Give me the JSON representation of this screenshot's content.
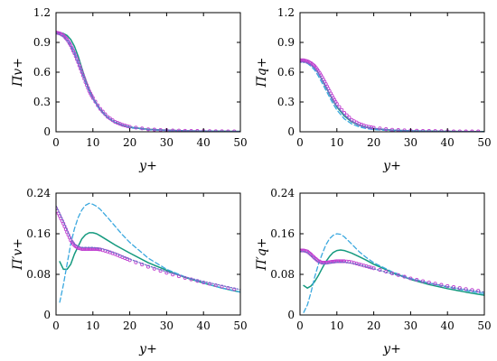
{
  "colors": {
    "green": "#159a7f",
    "cyan_dashed": "#3aa8df",
    "magenta": "#c040d0",
    "blue_dotted": "#6a73c9"
  },
  "chart_data": [
    {
      "type": "line",
      "panel": "top-left",
      "xlabel": "y+",
      "ylabel": "Π̄v+",
      "xlim": [
        0,
        50
      ],
      "ylim": [
        0,
        1.2
      ],
      "xticks": [
        "0",
        "10",
        "20",
        "30",
        "40",
        "50"
      ],
      "yticks": [
        "0",
        "0.3",
        "0.6",
        "0.9",
        "1.2"
      ],
      "series": [
        {
          "style": "solid",
          "color": "#159a7f",
          "x": [
            0,
            1,
            2,
            3,
            4,
            5,
            6,
            7,
            8,
            9,
            10,
            12,
            14,
            16,
            18,
            20,
            25,
            30,
            35,
            40,
            45,
            50
          ],
          "y": [
            1.0,
            1.0,
            0.99,
            0.97,
            0.93,
            0.86,
            0.76,
            0.64,
            0.53,
            0.43,
            0.34,
            0.22,
            0.14,
            0.09,
            0.06,
            0.045,
            0.025,
            0.015,
            0.01,
            0.007,
            0.005,
            0.004
          ]
        },
        {
          "style": "dashed",
          "color": "#3aa8df",
          "x": [
            0,
            1,
            2,
            3,
            4,
            5,
            6,
            7,
            8,
            9,
            10,
            12,
            14,
            16,
            18,
            20,
            25,
            30,
            35,
            40,
            45,
            50
          ],
          "y": [
            1.0,
            0.99,
            0.97,
            0.94,
            0.88,
            0.8,
            0.7,
            0.6,
            0.5,
            0.41,
            0.33,
            0.21,
            0.14,
            0.09,
            0.06,
            0.04,
            0.02,
            0.012,
            0.008,
            0.005,
            0.004,
            0.003
          ]
        },
        {
          "style": "markers",
          "color": "#c040d0",
          "x": [
            0,
            1,
            2,
            3,
            4,
            5,
            6,
            7,
            8,
            9,
            10,
            12,
            14,
            16,
            18,
            20,
            25,
            30,
            35,
            40,
            45,
            50
          ],
          "y": [
            1.0,
            0.99,
            0.97,
            0.93,
            0.87,
            0.79,
            0.7,
            0.6,
            0.5,
            0.41,
            0.34,
            0.23,
            0.15,
            0.1,
            0.07,
            0.05,
            0.025,
            0.015,
            0.01,
            0.007,
            0.005,
            0.004
          ]
        },
        {
          "style": "dotted",
          "color": "#6a73c9",
          "x": [
            0,
            1,
            2,
            3,
            4,
            5,
            6,
            7,
            8,
            9,
            10,
            12,
            14,
            16,
            18,
            20,
            25,
            30,
            35,
            40,
            45,
            50
          ],
          "y": [
            0.99,
            0.98,
            0.96,
            0.92,
            0.86,
            0.78,
            0.69,
            0.59,
            0.5,
            0.41,
            0.34,
            0.23,
            0.15,
            0.1,
            0.07,
            0.05,
            0.025,
            0.015,
            0.01,
            0.007,
            0.005,
            0.004
          ]
        }
      ]
    },
    {
      "type": "line",
      "panel": "top-right",
      "xlabel": "y+",
      "ylabel": "Π̄q+",
      "xlim": [
        0,
        50
      ],
      "ylim": [
        0,
        1.2
      ],
      "xticks": [
        "0",
        "10",
        "20",
        "30",
        "40",
        "50"
      ],
      "yticks": [
        "0",
        "0.3",
        "0.6",
        "0.9",
        "1.2"
      ],
      "series": [
        {
          "style": "solid",
          "color": "#159a7f",
          "x": [
            0,
            1,
            2,
            3,
            4,
            5,
            6,
            7,
            8,
            9,
            10,
            12,
            14,
            16,
            18,
            20,
            25,
            30,
            35,
            40,
            45,
            50
          ],
          "y": [
            0.71,
            0.71,
            0.7,
            0.68,
            0.64,
            0.59,
            0.52,
            0.45,
            0.38,
            0.31,
            0.25,
            0.16,
            0.1,
            0.065,
            0.045,
            0.03,
            0.015,
            0.009,
            0.006,
            0.004,
            0.003,
            0.002
          ]
        },
        {
          "style": "dashed",
          "color": "#3aa8df",
          "x": [
            0,
            1,
            2,
            3,
            4,
            5,
            6,
            7,
            8,
            9,
            10,
            12,
            14,
            16,
            18,
            20,
            25,
            30,
            35,
            40,
            45,
            50
          ],
          "y": [
            0.71,
            0.7,
            0.69,
            0.66,
            0.62,
            0.56,
            0.49,
            0.42,
            0.35,
            0.28,
            0.22,
            0.13,
            0.08,
            0.05,
            0.033,
            0.022,
            0.01,
            0.006,
            0.004,
            0.003,
            0.002,
            0.002
          ]
        },
        {
          "style": "markers",
          "color": "#c040d0",
          "x": [
            0,
            1,
            2,
            3,
            4,
            5,
            6,
            7,
            8,
            9,
            10,
            12,
            14,
            16,
            18,
            20,
            25,
            30,
            35,
            40,
            45,
            50
          ],
          "y": [
            0.72,
            0.72,
            0.71,
            0.69,
            0.66,
            0.61,
            0.55,
            0.48,
            0.41,
            0.34,
            0.28,
            0.19,
            0.12,
            0.08,
            0.055,
            0.04,
            0.02,
            0.012,
            0.008,
            0.005,
            0.004,
            0.003
          ]
        },
        {
          "style": "dotted",
          "color": "#6a73c9",
          "x": [
            0,
            1,
            2,
            3,
            4,
            5,
            6,
            7,
            8,
            9,
            10,
            12,
            14,
            16,
            18,
            20,
            25,
            30,
            35,
            40,
            45,
            50
          ],
          "y": [
            0.7,
            0.7,
            0.69,
            0.67,
            0.64,
            0.59,
            0.53,
            0.46,
            0.39,
            0.32,
            0.26,
            0.17,
            0.11,
            0.07,
            0.05,
            0.035,
            0.018,
            0.011,
            0.007,
            0.005,
            0.003,
            0.002
          ]
        }
      ]
    },
    {
      "type": "line",
      "panel": "bottom-left",
      "xlabel": "y+",
      "ylabel": "Π′v+",
      "xlim": [
        0,
        50
      ],
      "ylim": [
        0,
        0.24
      ],
      "xticks": [
        "0",
        "10",
        "20",
        "30",
        "40",
        "50"
      ],
      "yticks": [
        "0",
        "0.08",
        "0.16",
        "0.24"
      ],
      "series": [
        {
          "style": "solid",
          "color": "#159a7f",
          "x": [
            1,
            2,
            3,
            4,
            5,
            6,
            7,
            8,
            9,
            10,
            11,
            12,
            14,
            16,
            18,
            20,
            25,
            30,
            35,
            40,
            45,
            50
          ],
          "y": [
            0.105,
            0.09,
            0.09,
            0.1,
            0.12,
            0.135,
            0.15,
            0.158,
            0.162,
            0.162,
            0.16,
            0.156,
            0.147,
            0.138,
            0.13,
            0.122,
            0.103,
            0.088,
            0.074,
            0.063,
            0.053,
            0.045
          ]
        },
        {
          "style": "dashed",
          "color": "#3aa8df",
          "x": [
            1,
            2,
            3,
            4,
            5,
            6,
            7,
            8,
            9,
            10,
            11,
            12,
            14,
            16,
            18,
            20,
            25,
            30,
            35,
            40,
            45,
            50
          ],
          "y": [
            0.025,
            0.06,
            0.1,
            0.14,
            0.17,
            0.192,
            0.207,
            0.216,
            0.22,
            0.218,
            0.214,
            0.208,
            0.192,
            0.175,
            0.158,
            0.143,
            0.112,
            0.09,
            0.075,
            0.063,
            0.053,
            0.045
          ]
        },
        {
          "style": "markers",
          "color": "#c040d0",
          "x": [
            0,
            1,
            2,
            3,
            4,
            5,
            6,
            7,
            8,
            9,
            10,
            11,
            12,
            14,
            16,
            18,
            20,
            25,
            30,
            35,
            40,
            45,
            50
          ],
          "y": [
            0.21,
            0.195,
            0.18,
            0.163,
            0.147,
            0.137,
            0.132,
            0.13,
            0.13,
            0.13,
            0.13,
            0.13,
            0.129,
            0.125,
            0.12,
            0.114,
            0.108,
            0.095,
            0.083,
            0.073,
            0.064,
            0.056,
            0.048
          ]
        },
        {
          "style": "dotted",
          "color": "#6a73c9",
          "x": [
            0,
            1,
            2,
            3,
            4,
            5,
            6,
            7,
            8,
            9,
            10,
            11,
            12,
            14,
            16,
            18,
            20,
            25,
            30,
            35,
            40,
            45,
            50
          ],
          "y": [
            0.215,
            0.2,
            0.184,
            0.167,
            0.15,
            0.14,
            0.135,
            0.133,
            0.133,
            0.133,
            0.133,
            0.132,
            0.131,
            0.127,
            0.122,
            0.116,
            0.11,
            0.097,
            0.085,
            0.075,
            0.066,
            0.058,
            0.05
          ]
        }
      ]
    },
    {
      "type": "line",
      "panel": "bottom-right",
      "xlabel": "y+",
      "ylabel": "Π′q+",
      "xlim": [
        0,
        50
      ],
      "ylim": [
        0,
        0.24
      ],
      "xticks": [
        "0",
        "10",
        "20",
        "30",
        "40",
        "50"
      ],
      "yticks": [
        "0",
        "0.08",
        "0.16",
        "0.24"
      ],
      "series": [
        {
          "style": "solid",
          "color": "#159a7f",
          "x": [
            1,
            2,
            3,
            4,
            5,
            6,
            7,
            8,
            9,
            10,
            11,
            12,
            14,
            16,
            18,
            20,
            25,
            30,
            35,
            40,
            45,
            50
          ],
          "y": [
            0.058,
            0.053,
            0.057,
            0.066,
            0.078,
            0.092,
            0.105,
            0.115,
            0.123,
            0.127,
            0.128,
            0.127,
            0.122,
            0.115,
            0.108,
            0.1,
            0.084,
            0.07,
            0.06,
            0.052,
            0.045,
            0.039
          ]
        },
        {
          "style": "dashed",
          "color": "#3aa8df",
          "x": [
            1,
            2,
            3,
            4,
            5,
            6,
            7,
            8,
            9,
            10,
            11,
            12,
            14,
            16,
            18,
            20,
            25,
            30,
            35,
            40,
            45,
            50
          ],
          "y": [
            0.005,
            0.02,
            0.045,
            0.075,
            0.1,
            0.12,
            0.138,
            0.15,
            0.157,
            0.16,
            0.159,
            0.154,
            0.14,
            0.125,
            0.113,
            0.103,
            0.085,
            0.072,
            0.063,
            0.055,
            0.048,
            0.042
          ]
        },
        {
          "style": "markers",
          "color": "#c040d0",
          "x": [
            0,
            1,
            2,
            3,
            4,
            5,
            6,
            7,
            8,
            9,
            10,
            11,
            12,
            14,
            16,
            18,
            20,
            25,
            30,
            35,
            40,
            45,
            50
          ],
          "y": [
            0.127,
            0.127,
            0.125,
            0.119,
            0.112,
            0.106,
            0.103,
            0.103,
            0.104,
            0.105,
            0.106,
            0.106,
            0.106,
            0.104,
            0.1,
            0.096,
            0.092,
            0.082,
            0.072,
            0.064,
            0.057,
            0.051,
            0.046
          ]
        },
        {
          "style": "dotted",
          "color": "#6a73c9",
          "x": [
            0,
            1,
            2,
            3,
            4,
            5,
            6,
            7,
            8,
            9,
            10,
            11,
            12,
            14,
            16,
            18,
            20,
            25,
            30,
            35,
            40,
            45,
            50
          ],
          "y": [
            0.125,
            0.125,
            0.123,
            0.117,
            0.11,
            0.104,
            0.101,
            0.101,
            0.102,
            0.103,
            0.104,
            0.104,
            0.104,
            0.102,
            0.099,
            0.095,
            0.091,
            0.081,
            0.071,
            0.063,
            0.056,
            0.05,
            0.045
          ]
        }
      ]
    }
  ]
}
